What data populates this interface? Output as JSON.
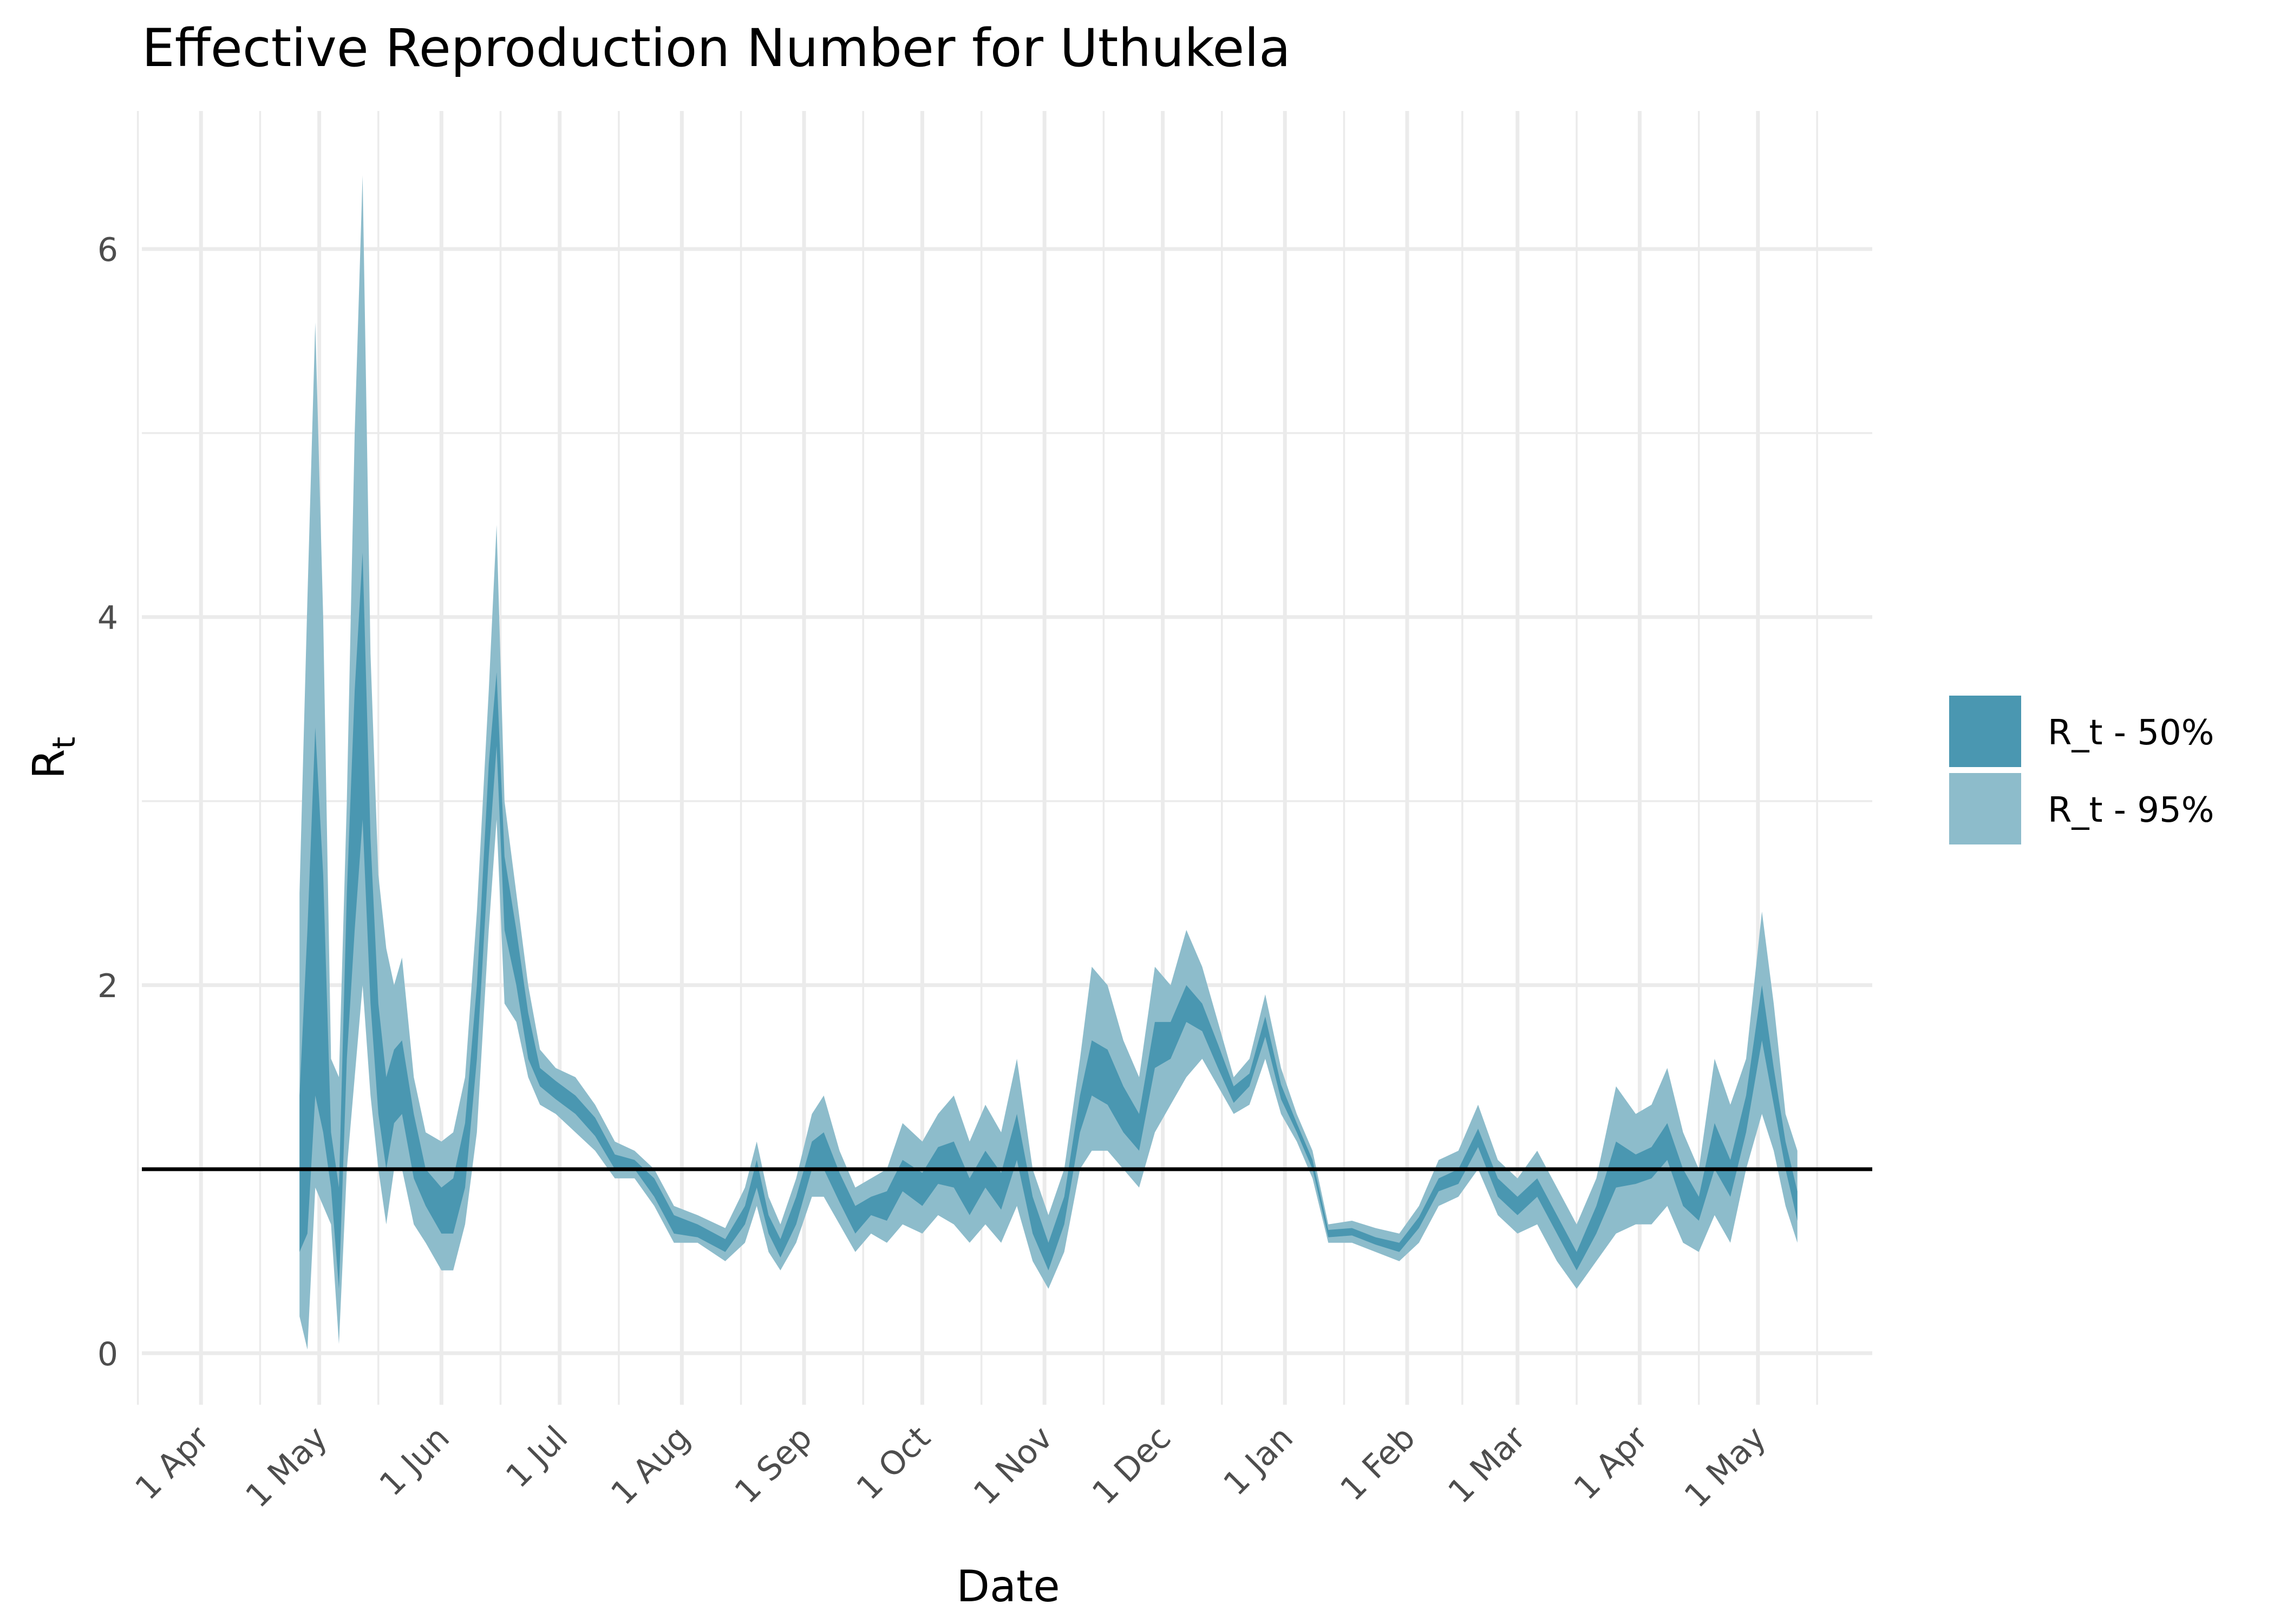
{
  "chart_data": {
    "type": "area",
    "title": "Effective Reproduction Number for Uthukela",
    "xlabel": "Date",
    "ylabel_main": "R",
    "ylabel_sub": "t",
    "x_ticks": [
      {
        "date": "2020-04-01",
        "label": "1 Apr"
      },
      {
        "date": "2020-05-01",
        "label": "1 May"
      },
      {
        "date": "2020-06-01",
        "label": "1 Jun"
      },
      {
        "date": "2020-07-01",
        "label": "1 Jul"
      },
      {
        "date": "2020-08-01",
        "label": "1 Aug"
      },
      {
        "date": "2020-09-01",
        "label": "1 Sep"
      },
      {
        "date": "2020-10-01",
        "label": "1 Oct"
      },
      {
        "date": "2020-11-01",
        "label": "1 Nov"
      },
      {
        "date": "2020-12-01",
        "label": "1 Dec"
      },
      {
        "date": "2021-01-01",
        "label": "1 Jan"
      },
      {
        "date": "2021-02-01",
        "label": "1 Feb"
      },
      {
        "date": "2021-03-01",
        "label": "1 Mar"
      },
      {
        "date": "2021-04-01",
        "label": "1 Apr"
      },
      {
        "date": "2021-05-01",
        "label": "1 May"
      }
    ],
    "y_ticks": [
      0,
      2,
      4,
      6
    ],
    "xlim": [
      "2020-03-17",
      "2021-05-30"
    ],
    "ylim": [
      -0.28,
      6.75
    ],
    "reference_line": 1,
    "legend": [
      {
        "label": "R_t - 50%",
        "color": "#4a97b1"
      },
      {
        "label": "R_t - 95%",
        "color": "#8dbccb"
      }
    ],
    "series": [
      {
        "name": "R_t - 95%",
        "color": "#8dbccb",
        "points": [
          [
            "2020-04-26",
            0.2,
            2.5
          ],
          [
            "2020-04-28",
            0.02,
            4.1
          ],
          [
            "2020-04-30",
            0.9,
            5.6
          ],
          [
            "2020-05-02",
            0.8,
            4.0
          ],
          [
            "2020-05-04",
            0.7,
            1.6
          ],
          [
            "2020-05-06",
            0.05,
            1.5
          ],
          [
            "2020-05-08",
            1.0,
            3.0
          ],
          [
            "2020-05-10",
            1.5,
            5.0
          ],
          [
            "2020-05-12",
            2.0,
            6.4
          ],
          [
            "2020-05-14",
            1.4,
            3.8
          ],
          [
            "2020-05-16",
            1.0,
            2.6
          ],
          [
            "2020-05-18",
            0.7,
            2.2
          ],
          [
            "2020-05-20",
            1.0,
            2.0
          ],
          [
            "2020-05-22",
            1.0,
            2.15
          ],
          [
            "2020-05-25",
            0.7,
            1.5
          ],
          [
            "2020-05-28",
            0.6,
            1.2
          ],
          [
            "2020-06-01",
            0.45,
            1.15
          ],
          [
            "2020-06-04",
            0.45,
            1.2
          ],
          [
            "2020-06-07",
            0.7,
            1.5
          ],
          [
            "2020-06-10",
            1.2,
            2.4
          ],
          [
            "2020-06-13",
            2.3,
            3.6
          ],
          [
            "2020-06-15",
            2.9,
            4.5
          ],
          [
            "2020-06-17",
            1.9,
            3.0
          ],
          [
            "2020-06-20",
            1.8,
            2.5
          ],
          [
            "2020-06-23",
            1.5,
            2.0
          ],
          [
            "2020-06-26",
            1.35,
            1.65
          ],
          [
            "2020-06-30",
            1.3,
            1.55
          ],
          [
            "2020-07-05",
            1.2,
            1.5
          ],
          [
            "2020-07-10",
            1.1,
            1.35
          ],
          [
            "2020-07-15",
            0.95,
            1.15
          ],
          [
            "2020-07-20",
            0.95,
            1.1
          ],
          [
            "2020-07-25",
            0.8,
            1.0
          ],
          [
            "2020-07-30",
            0.6,
            0.8
          ],
          [
            "2020-08-05",
            0.6,
            0.75
          ],
          [
            "2020-08-12",
            0.5,
            0.68
          ],
          [
            "2020-08-17",
            0.6,
            0.9
          ],
          [
            "2020-08-20",
            0.8,
            1.15
          ],
          [
            "2020-08-23",
            0.55,
            0.85
          ],
          [
            "2020-08-26",
            0.45,
            0.7
          ],
          [
            "2020-08-30",
            0.6,
            0.95
          ],
          [
            "2020-09-03",
            0.85,
            1.3
          ],
          [
            "2020-09-06",
            0.85,
            1.4
          ],
          [
            "2020-09-10",
            0.7,
            1.1
          ],
          [
            "2020-09-14",
            0.55,
            0.9
          ],
          [
            "2020-09-18",
            0.65,
            0.95
          ],
          [
            "2020-09-22",
            0.6,
            1.0
          ],
          [
            "2020-09-26",
            0.7,
            1.25
          ],
          [
            "2020-10-01",
            0.65,
            1.15
          ],
          [
            "2020-10-05",
            0.75,
            1.3
          ],
          [
            "2020-10-09",
            0.7,
            1.4
          ],
          [
            "2020-10-13",
            0.6,
            1.15
          ],
          [
            "2020-10-17",
            0.7,
            1.35
          ],
          [
            "2020-10-21",
            0.6,
            1.2
          ],
          [
            "2020-10-25",
            0.8,
            1.6
          ],
          [
            "2020-10-29",
            0.5,
            1.0
          ],
          [
            "2020-11-02",
            0.35,
            0.75
          ],
          [
            "2020-11-06",
            0.55,
            1.0
          ],
          [
            "2020-11-10",
            1.0,
            1.6
          ],
          [
            "2020-11-13",
            1.1,
            2.1
          ],
          [
            "2020-11-17",
            1.1,
            2.0
          ],
          [
            "2020-11-21",
            1.0,
            1.7
          ],
          [
            "2020-11-25",
            0.9,
            1.5
          ],
          [
            "2020-11-29",
            1.2,
            2.1
          ],
          [
            "2020-12-03",
            1.35,
            2.0
          ],
          [
            "2020-12-07",
            1.5,
            2.3
          ],
          [
            "2020-12-11",
            1.6,
            2.1
          ],
          [
            "2020-12-15",
            1.45,
            1.8
          ],
          [
            "2020-12-19",
            1.3,
            1.5
          ],
          [
            "2020-12-23",
            1.35,
            1.6
          ],
          [
            "2020-12-27",
            1.6,
            1.95
          ],
          [
            "2020-12-31",
            1.3,
            1.55
          ],
          [
            "2021-01-04",
            1.15,
            1.3
          ],
          [
            "2021-01-08",
            0.95,
            1.1
          ],
          [
            "2021-01-12",
            0.6,
            0.7
          ],
          [
            "2021-01-18",
            0.6,
            0.72
          ],
          [
            "2021-01-24",
            0.55,
            0.68
          ],
          [
            "2021-01-30",
            0.5,
            0.65
          ],
          [
            "2021-02-04",
            0.6,
            0.8
          ],
          [
            "2021-02-09",
            0.8,
            1.05
          ],
          [
            "2021-02-14",
            0.85,
            1.1
          ],
          [
            "2021-02-19",
            1.0,
            1.35
          ],
          [
            "2021-02-24",
            0.75,
            1.05
          ],
          [
            "2021-03-01",
            0.65,
            0.95
          ],
          [
            "2021-03-06",
            0.7,
            1.1
          ],
          [
            "2021-03-11",
            0.5,
            0.9
          ],
          [
            "2021-03-16",
            0.35,
            0.7
          ],
          [
            "2021-03-21",
            0.5,
            0.95
          ],
          [
            "2021-03-26",
            0.65,
            1.45
          ],
          [
            "2021-03-31",
            0.7,
            1.3
          ],
          [
            "2021-04-04",
            0.7,
            1.35
          ],
          [
            "2021-04-08",
            0.8,
            1.55
          ],
          [
            "2021-04-12",
            0.6,
            1.2
          ],
          [
            "2021-04-16",
            0.55,
            1.0
          ],
          [
            "2021-04-20",
            0.75,
            1.6
          ],
          [
            "2021-04-24",
            0.6,
            1.35
          ],
          [
            "2021-04-28",
            1.0,
            1.6
          ],
          [
            "2021-05-02",
            1.3,
            2.4
          ],
          [
            "2021-05-05",
            1.1,
            1.9
          ],
          [
            "2021-05-08",
            0.8,
            1.3
          ],
          [
            "2021-05-11",
            0.6,
            1.1
          ]
        ]
      },
      {
        "name": "R_t - 50%",
        "color": "#4a97b1",
        "points": [
          [
            "2020-04-26",
            0.55,
            1.4
          ],
          [
            "2020-04-28",
            0.65,
            2.3
          ],
          [
            "2020-04-30",
            1.4,
            3.4
          ],
          [
            "2020-05-02",
            1.2,
            2.6
          ],
          [
            "2020-05-04",
            0.9,
            1.2
          ],
          [
            "2020-05-06",
            0.35,
            0.9
          ],
          [
            "2020-05-08",
            1.6,
            2.5
          ],
          [
            "2020-05-10",
            2.3,
            3.6
          ],
          [
            "2020-05-12",
            2.9,
            4.35
          ],
          [
            "2020-05-14",
            1.9,
            2.8
          ],
          [
            "2020-05-16",
            1.3,
            1.9
          ],
          [
            "2020-05-18",
            1.0,
            1.5
          ],
          [
            "2020-05-20",
            1.25,
            1.65
          ],
          [
            "2020-05-22",
            1.3,
            1.7
          ],
          [
            "2020-05-25",
            0.95,
            1.3
          ],
          [
            "2020-05-28",
            0.8,
            1.0
          ],
          [
            "2020-06-01",
            0.65,
            0.9
          ],
          [
            "2020-06-04",
            0.65,
            0.95
          ],
          [
            "2020-06-07",
            0.9,
            1.25
          ],
          [
            "2020-06-10",
            1.6,
            2.0
          ],
          [
            "2020-06-13",
            2.7,
            3.2
          ],
          [
            "2020-06-15",
            3.3,
            3.7
          ],
          [
            "2020-06-17",
            2.3,
            2.7
          ],
          [
            "2020-06-20",
            2.0,
            2.3
          ],
          [
            "2020-06-23",
            1.6,
            1.85
          ],
          [
            "2020-06-26",
            1.45,
            1.55
          ],
          [
            "2020-06-30",
            1.38,
            1.48
          ],
          [
            "2020-07-05",
            1.3,
            1.4
          ],
          [
            "2020-07-10",
            1.18,
            1.28
          ],
          [
            "2020-07-15",
            1.0,
            1.08
          ],
          [
            "2020-07-20",
            1.0,
            1.05
          ],
          [
            "2020-07-25",
            0.85,
            0.95
          ],
          [
            "2020-07-30",
            0.65,
            0.75
          ],
          [
            "2020-08-05",
            0.63,
            0.7
          ],
          [
            "2020-08-12",
            0.55,
            0.62
          ],
          [
            "2020-08-17",
            0.7,
            0.8
          ],
          [
            "2020-08-20",
            0.9,
            1.05
          ],
          [
            "2020-08-23",
            0.65,
            0.75
          ],
          [
            "2020-08-26",
            0.52,
            0.62
          ],
          [
            "2020-08-30",
            0.7,
            0.85
          ],
          [
            "2020-09-03",
            1.0,
            1.15
          ],
          [
            "2020-09-06",
            1.0,
            1.2
          ],
          [
            "2020-09-10",
            0.82,
            0.98
          ],
          [
            "2020-09-14",
            0.65,
            0.8
          ],
          [
            "2020-09-18",
            0.75,
            0.85
          ],
          [
            "2020-09-22",
            0.72,
            0.88
          ],
          [
            "2020-09-26",
            0.88,
            1.05
          ],
          [
            "2020-10-01",
            0.8,
            0.98
          ],
          [
            "2020-10-05",
            0.92,
            1.12
          ],
          [
            "2020-10-09",
            0.9,
            1.15
          ],
          [
            "2020-10-13",
            0.75,
            0.95
          ],
          [
            "2020-10-17",
            0.9,
            1.1
          ],
          [
            "2020-10-21",
            0.78,
            0.98
          ],
          [
            "2020-10-25",
            1.05,
            1.3
          ],
          [
            "2020-10-29",
            0.65,
            0.85
          ],
          [
            "2020-11-02",
            0.45,
            0.6
          ],
          [
            "2020-11-06",
            0.7,
            0.85
          ],
          [
            "2020-11-10",
            1.2,
            1.4
          ],
          [
            "2020-11-13",
            1.4,
            1.7
          ],
          [
            "2020-11-17",
            1.35,
            1.65
          ],
          [
            "2020-11-21",
            1.2,
            1.45
          ],
          [
            "2020-11-25",
            1.1,
            1.3
          ],
          [
            "2020-11-29",
            1.55,
            1.8
          ],
          [
            "2020-12-03",
            1.6,
            1.8
          ],
          [
            "2020-12-07",
            1.8,
            2.0
          ],
          [
            "2020-12-11",
            1.75,
            1.9
          ],
          [
            "2020-12-15",
            1.55,
            1.68
          ],
          [
            "2020-12-19",
            1.36,
            1.45
          ],
          [
            "2020-12-23",
            1.45,
            1.52
          ],
          [
            "2020-12-27",
            1.72,
            1.83
          ],
          [
            "2020-12-31",
            1.38,
            1.46
          ],
          [
            "2021-01-04",
            1.2,
            1.25
          ],
          [
            "2021-01-08",
            1.0,
            1.05
          ],
          [
            "2021-01-12",
            0.63,
            0.67
          ],
          [
            "2021-01-18",
            0.64,
            0.68
          ],
          [
            "2021-01-24",
            0.59,
            0.63
          ],
          [
            "2021-01-30",
            0.55,
            0.6
          ],
          [
            "2021-02-04",
            0.68,
            0.74
          ],
          [
            "2021-02-09",
            0.88,
            0.95
          ],
          [
            "2021-02-14",
            0.92,
            1.0
          ],
          [
            "2021-02-19",
            1.12,
            1.22
          ],
          [
            "2021-02-24",
            0.85,
            0.95
          ],
          [
            "2021-03-01",
            0.75,
            0.85
          ],
          [
            "2021-03-06",
            0.85,
            0.95
          ],
          [
            "2021-03-11",
            0.65,
            0.75
          ],
          [
            "2021-03-16",
            0.45,
            0.55
          ],
          [
            "2021-03-21",
            0.65,
            0.8
          ],
          [
            "2021-03-26",
            0.9,
            1.15
          ],
          [
            "2021-03-31",
            0.92,
            1.08
          ],
          [
            "2021-04-04",
            0.95,
            1.12
          ],
          [
            "2021-04-08",
            1.05,
            1.25
          ],
          [
            "2021-04-12",
            0.8,
            1.0
          ],
          [
            "2021-04-16",
            0.72,
            0.85
          ],
          [
            "2021-04-20",
            1.0,
            1.25
          ],
          [
            "2021-04-24",
            0.85,
            1.05
          ],
          [
            "2021-04-28",
            1.2,
            1.4
          ],
          [
            "2021-05-02",
            1.7,
            2.0
          ],
          [
            "2021-05-05",
            1.35,
            1.55
          ],
          [
            "2021-05-08",
            1.0,
            1.15
          ],
          [
            "2021-05-11",
            0.72,
            0.88
          ]
        ]
      }
    ]
  }
}
